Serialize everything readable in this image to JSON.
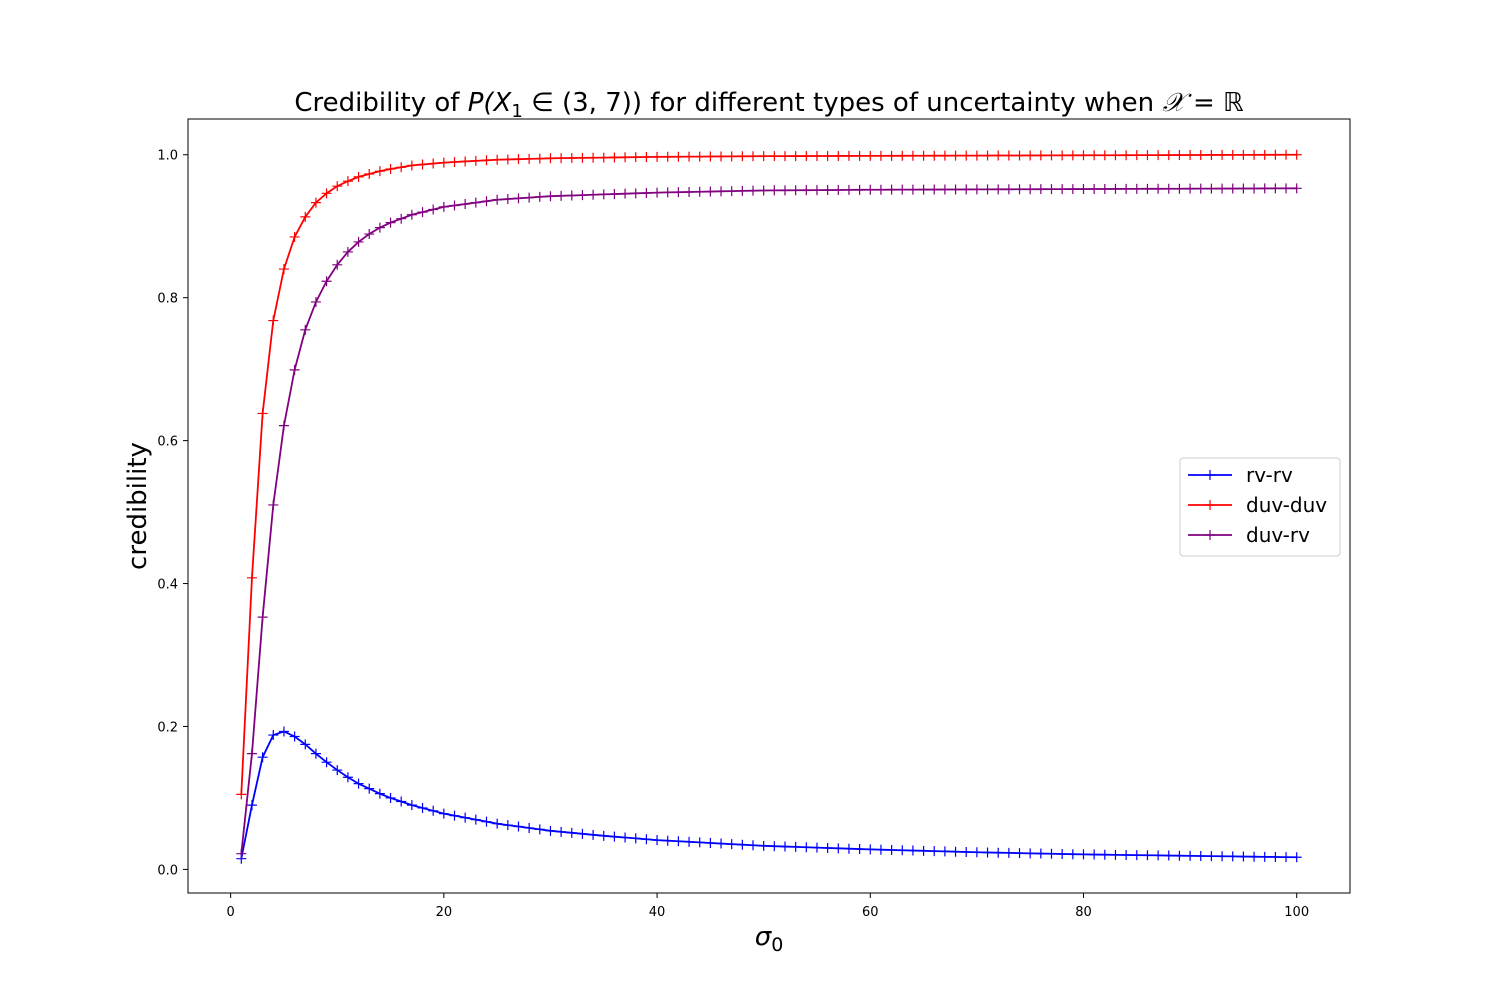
{
  "chart_data": {
    "type": "line",
    "title": {
      "prefix": "Credibility of ",
      "math": "P(X",
      "sub": "1",
      "math2": " ∈ (3, 7))",
      "mid": " for different types of uncertainty when ",
      "math3": "𝒳 = ℝ"
    },
    "xlabel": {
      "symbol": "σ",
      "sub": "0"
    },
    "ylabel": "credibility",
    "xlim": [
      -4,
      105
    ],
    "ylim": [
      -0.033,
      1.05
    ],
    "xticks": [
      0,
      20,
      40,
      60,
      80,
      100
    ],
    "yticks": [
      0.0,
      0.2,
      0.4,
      0.6,
      0.8,
      1.0
    ],
    "xtick_labels": [
      "0",
      "20",
      "40",
      "60",
      "80",
      "100"
    ],
    "ytick_labels": [
      "0.0",
      "0.2",
      "0.4",
      "0.6",
      "0.8",
      "1.0"
    ],
    "legend_position": "center-right",
    "marker": "plus",
    "x_range": {
      "from": 1,
      "to": 100,
      "step": 1
    },
    "series": [
      {
        "name": "rv-rv",
        "color": "#0000ff",
        "anchors": [
          [
            1,
            0.015
          ],
          [
            2,
            0.09
          ],
          [
            3,
            0.157
          ],
          [
            4,
            0.188
          ],
          [
            5,
            0.193
          ],
          [
            6,
            0.186
          ],
          [
            7,
            0.175
          ],
          [
            8,
            0.162
          ],
          [
            9,
            0.15
          ],
          [
            10,
            0.139
          ],
          [
            11,
            0.129
          ],
          [
            12,
            0.12
          ],
          [
            13,
            0.113
          ],
          [
            14,
            0.106
          ],
          [
            15,
            0.1
          ],
          [
            16,
            0.095
          ],
          [
            17,
            0.09
          ],
          [
            18,
            0.086
          ],
          [
            19,
            0.082
          ],
          [
            20,
            0.078
          ],
          [
            25,
            0.064
          ],
          [
            30,
            0.054
          ],
          [
            35,
            0.047
          ],
          [
            40,
            0.041
          ],
          [
            50,
            0.033
          ],
          [
            60,
            0.028
          ],
          [
            70,
            0.024
          ],
          [
            80,
            0.021
          ],
          [
            90,
            0.019
          ],
          [
            100,
            0.017
          ]
        ]
      },
      {
        "name": "duv-duv",
        "color": "#ff0000",
        "anchors": [
          [
            1,
            0.105
          ],
          [
            2,
            0.408
          ],
          [
            3,
            0.638
          ],
          [
            4,
            0.768
          ],
          [
            5,
            0.84
          ],
          [
            6,
            0.885
          ],
          [
            7,
            0.913
          ],
          [
            8,
            0.933
          ],
          [
            9,
            0.946
          ],
          [
            10,
            0.956
          ],
          [
            11,
            0.963
          ],
          [
            12,
            0.969
          ],
          [
            13,
            0.973
          ],
          [
            14,
            0.977
          ],
          [
            15,
            0.98
          ],
          [
            17,
            0.985
          ],
          [
            20,
            0.989
          ],
          [
            25,
            0.993
          ],
          [
            30,
            0.995
          ],
          [
            40,
            0.997
          ],
          [
            50,
            0.998
          ],
          [
            100,
            1.0
          ]
        ]
      },
      {
        "name": "duv-rv",
        "color": "#800080",
        "anchors": [
          [
            1,
            0.022
          ],
          [
            2,
            0.162
          ],
          [
            3,
            0.353
          ],
          [
            4,
            0.51
          ],
          [
            5,
            0.621
          ],
          [
            6,
            0.699
          ],
          [
            7,
            0.755
          ],
          [
            8,
            0.794
          ],
          [
            9,
            0.823
          ],
          [
            10,
            0.846
          ],
          [
            11,
            0.864
          ],
          [
            12,
            0.878
          ],
          [
            13,
            0.889
          ],
          [
            14,
            0.898
          ],
          [
            15,
            0.905
          ],
          [
            17,
            0.916
          ],
          [
            20,
            0.927
          ],
          [
            25,
            0.937
          ],
          [
            30,
            0.942
          ],
          [
            40,
            0.947
          ],
          [
            50,
            0.95
          ],
          [
            60,
            0.951
          ],
          [
            80,
            0.952
          ],
          [
            100,
            0.953
          ]
        ]
      }
    ]
  }
}
